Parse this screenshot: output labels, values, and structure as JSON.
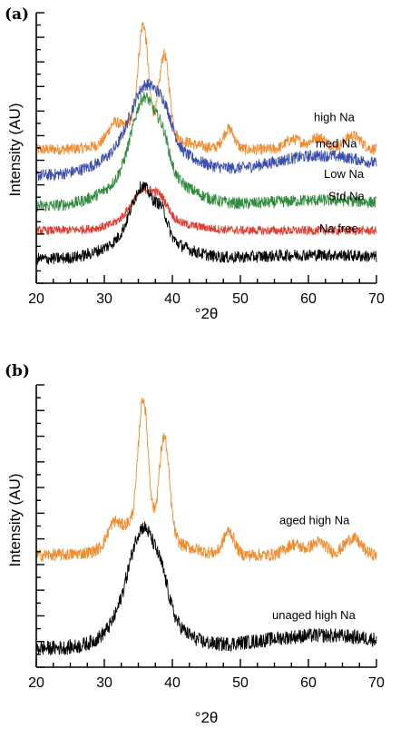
{
  "chart_data": [
    {
      "panel": "(a)",
      "type": "line",
      "xlabel": "°2θ",
      "ylabel": "Intensity (AU)",
      "xlim": [
        20,
        70
      ],
      "xticks": [
        20,
        30,
        40,
        50,
        60,
        70
      ],
      "y_tick_labels": "none",
      "grid": false,
      "legend": "none; series labelled inline at right",
      "series": [
        {
          "name": "high Na",
          "color": "#f58a2a",
          "offset": 6.6,
          "peaks": [
            [
              31.5,
              0.9,
              1.0
            ],
            [
              33.6,
              0.5,
              0.7
            ],
            [
              35.7,
              5.4,
              0.75
            ],
            [
              38.8,
              4.0,
              0.75
            ],
            [
              48.3,
              1.0,
              0.8
            ],
            [
              57.8,
              0.5,
              1.2
            ],
            [
              61.5,
              0.6,
              1.2
            ],
            [
              66.5,
              0.7,
              1.2
            ]
          ],
          "broad": [
            [
              36.5,
              0.8,
              4.5
            ]
          ],
          "noise": 0.28
        },
        {
          "name": "med Na",
          "color": "#3a4db0",
          "offset": 5.3,
          "peaks": [
            [
              36.2,
              2.9,
              2.2
            ],
            [
              39.0,
              0.8,
              1.0
            ]
          ],
          "broad": [
            [
              36.5,
              1.6,
              5.5
            ],
            [
              62.0,
              1.0,
              8.0
            ]
          ],
          "noise": 0.3
        },
        {
          "name": "Low Na",
          "color": "#2e8b3a",
          "offset": 3.8,
          "peaks": [
            [
              35.9,
              3.6,
              1.8
            ],
            [
              38.7,
              1.1,
              0.9
            ]
          ],
          "broad": [
            [
              36.5,
              1.8,
              5.0
            ],
            [
              62.0,
              0.3,
              8.0
            ]
          ],
          "noise": 0.3
        },
        {
          "name": "Std Na",
          "color": "#e23b2e",
          "offset": 2.6,
          "peaks": [
            [
              36.0,
              1.5,
              2.0
            ],
            [
              38.5,
              0.5,
              1.0
            ]
          ],
          "broad": [
            [
              37.0,
              0.5,
              5.0
            ]
          ],
          "noise": 0.22
        },
        {
          "name": "Na free",
          "color": "#000000",
          "offset": 1.2,
          "peaks": [
            [
              35.6,
              2.3,
              1.6
            ],
            [
              38.5,
              1.0,
              0.8
            ]
          ],
          "broad": [
            [
              36.0,
              1.3,
              4.5
            ],
            [
              61.0,
              0.2,
              8.0
            ]
          ],
          "noise": 0.3
        }
      ]
    },
    {
      "panel": "(b)",
      "type": "line",
      "xlabel": "°2θ",
      "ylabel": "Intensity (AU)",
      "xlim": [
        20,
        70
      ],
      "xticks": [
        20,
        30,
        40,
        50,
        60,
        70
      ],
      "y_tick_labels": "none",
      "grid": false,
      "legend": "none; series labelled inline at right",
      "series": [
        {
          "name": "aged high Na",
          "color": "#f58a2a",
          "offset": 5.3,
          "peaks": [
            [
              31.5,
              1.1,
              1.0
            ],
            [
              33.6,
              0.6,
              0.7
            ],
            [
              35.7,
              6.5,
              0.75
            ],
            [
              38.8,
              4.8,
              0.75
            ],
            [
              48.3,
              1.1,
              0.8
            ],
            [
              57.8,
              0.5,
              1.2
            ],
            [
              61.5,
              0.6,
              1.2
            ],
            [
              66.5,
              0.8,
              1.2
            ]
          ],
          "broad": [
            [
              36.5,
              0.9,
              4.5
            ]
          ],
          "noise": 0.3
        },
        {
          "name": "unaged high Na",
          "color": "#000000",
          "offset": 0.9,
          "peaks": [
            [
              35.7,
              3.6,
              2.0
            ],
            [
              38.6,
              0.8,
              0.9
            ]
          ],
          "broad": [
            [
              36.0,
              2.1,
              4.0
            ],
            [
              62.0,
              0.6,
              9.0
            ]
          ],
          "noise": 0.35
        }
      ]
    }
  ]
}
